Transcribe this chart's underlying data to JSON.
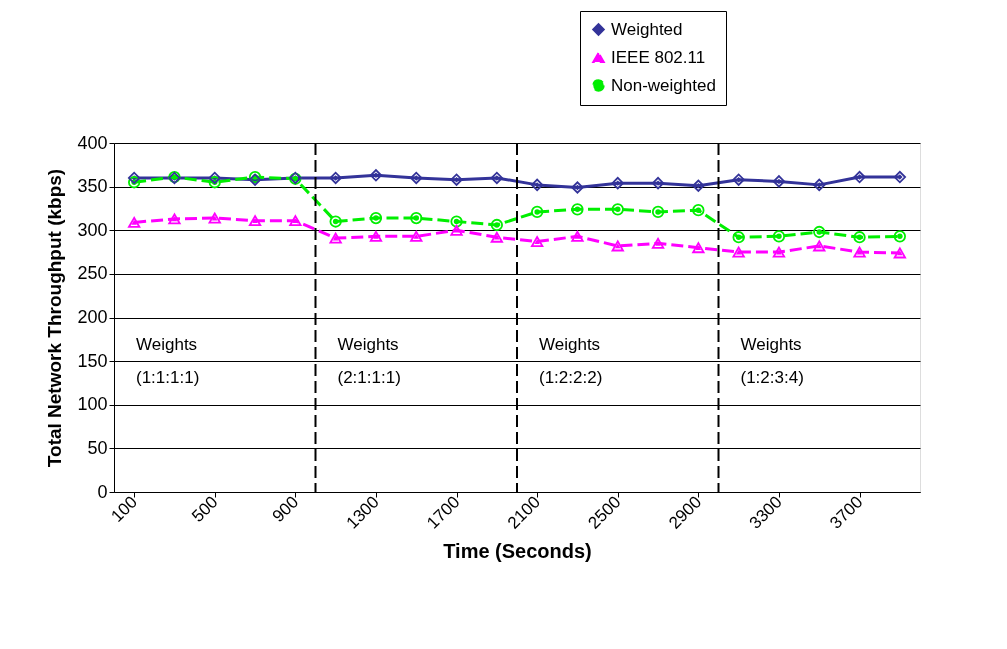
{
  "chart_data": {
    "type": "line",
    "xlabel": "Time (Seconds)",
    "ylabel": "Total Network Throughput (kbps)",
    "x": [
      100,
      300,
      500,
      700,
      900,
      1100,
      1300,
      1500,
      1700,
      1900,
      2100,
      2300,
      2500,
      2700,
      2900,
      3100,
      3300,
      3500,
      3700,
      3900
    ],
    "xlim": [
      0,
      4000
    ],
    "xticks": [
      100,
      500,
      900,
      1300,
      1700,
      2100,
      2500,
      2900,
      3300,
      3700
    ],
    "ylim": [
      0,
      400
    ],
    "yticks": [
      0,
      50,
      100,
      150,
      200,
      250,
      300,
      350,
      400
    ],
    "grid": "y",
    "legend": "top right",
    "series": [
      {
        "name": "Weighted",
        "color": "#333399",
        "marker": "diamond",
        "line_style": "solid",
        "values": [
          360,
          360,
          360,
          358,
          360,
          360,
          363,
          360,
          358,
          360,
          352,
          349,
          354,
          354,
          351,
          358,
          356,
          352,
          361,
          361
        ]
      },
      {
        "name": "IEEE 802.11",
        "color": "#ff00ff",
        "marker": "triangle",
        "line_style": "dashed",
        "values": [
          309,
          313,
          314,
          311,
          311,
          291,
          293,
          293,
          300,
          292,
          287,
          293,
          282,
          285,
          280,
          275,
          275,
          282,
          275,
          274
        ]
      },
      {
        "name": "Non-weighted",
        "color": "#00ee00",
        "marker": "circle",
        "line_style": "dashed",
        "values": [
          355,
          361,
          355,
          361,
          359,
          310,
          314,
          314,
          310,
          306,
          321,
          324,
          324,
          321,
          323,
          292,
          293,
          298,
          292,
          293
        ]
      }
    ],
    "ref_lines": [
      {
        "axis": "x",
        "value": 1000,
        "label": null,
        "color": "#000000",
        "line_style": "dashed"
      },
      {
        "axis": "x",
        "value": 2000,
        "label": null,
        "color": "#000000",
        "line_style": "dashed"
      },
      {
        "axis": "x",
        "value": 3000,
        "label": null,
        "color": "#000000",
        "line_style": "dashed"
      }
    ],
    "annotations": [
      "Weights",
      "(1:1:1:1)",
      "Weights",
      "(2:1:1:1)",
      "Weights",
      "(1:2:2:2)",
      "Weights",
      "(1:2:3:4)"
    ]
  }
}
